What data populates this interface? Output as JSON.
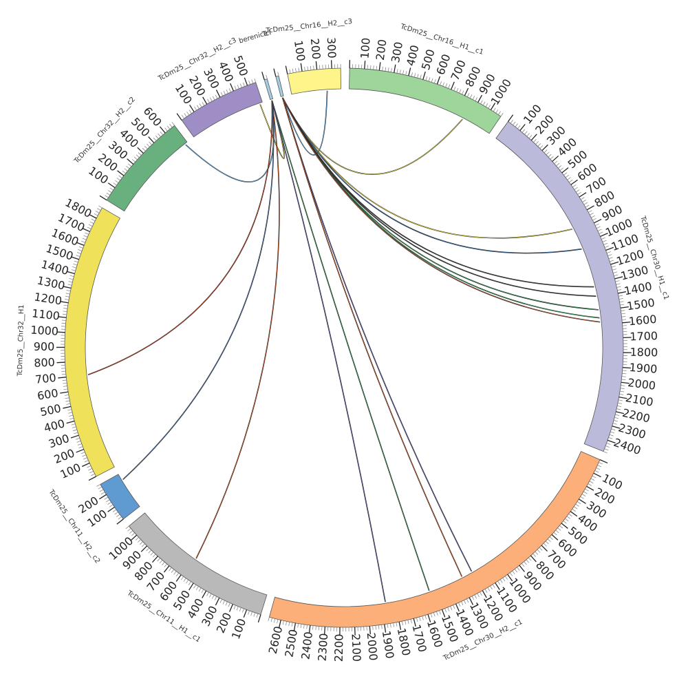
{
  "chromosomes": [
    {
      "id": "TcDm25__Chr32__H2__c3",
      "label": "TcDm25__Chr32__H2__c3",
      "length": 560,
      "color": "#9e8ec5",
      "ticks": [
        100,
        200,
        300,
        400,
        500
      ]
    },
    {
      "id": "berenice",
      "label": "berenice",
      "length": 20,
      "color": "#a6cee3",
      "ticks": []
    },
    {
      "id": "TcI",
      "label": "TcI",
      "length": 20,
      "color": "#a6cee3",
      "ticks": []
    },
    {
      "id": "TcDm25__Chr16__H2__c3",
      "label": "TcDm25__Chr16__H2__c3",
      "length": 360,
      "color": "#fdf58a",
      "ticks": [
        100,
        200,
        300
      ]
    },
    {
      "id": "TcDm25__Chr16__H1__c1",
      "label": "TcDm25__Chr16__H1__c1",
      "length": 1080,
      "color": "#9ed59b",
      "ticks": [
        100,
        200,
        300,
        400,
        500,
        600,
        700,
        800,
        900,
        1000
      ]
    },
    {
      "id": "TcDm25__Chr30__H1__c1",
      "label": "TcDm25__Chr30__H1__c1",
      "length": 2480,
      "color": "#bcbadb",
      "ticks": [
        100,
        200,
        300,
        400,
        500,
        600,
        700,
        800,
        900,
        1000,
        1100,
        1200,
        1300,
        1400,
        1500,
        1600,
        1700,
        1800,
        1900,
        2000,
        2100,
        2200,
        2300,
        2400
      ]
    },
    {
      "id": "TcDm25__Chr30__H2__c1",
      "label": "TcDm25__Chr30__H2__c1",
      "length": 2680,
      "color": "#fdaf79",
      "ticks": [
        100,
        200,
        300,
        400,
        500,
        600,
        700,
        800,
        900,
        1000,
        1100,
        1200,
        1300,
        1400,
        1500,
        1600,
        1700,
        1800,
        1900,
        2000,
        2100,
        2200,
        2300,
        2400,
        2500,
        2600
      ]
    },
    {
      "id": "TcDm25__Chr11__H1__c1",
      "label": "TcDm25__Chr11__H1__c1",
      "length": 1080,
      "color": "#b9b9b9",
      "ticks": [
        100,
        200,
        300,
        400,
        500,
        600,
        700,
        800,
        900,
        1000
      ]
    },
    {
      "id": "TcDm25__Chr11__H2__c2",
      "label": "TcDm25__Chr11__H2__c2",
      "length": 280,
      "color": "#5f9bd1",
      "ticks": [
        100,
        200
      ]
    },
    {
      "id": "TcDm25__Chr32__H1",
      "label": "TcDm25__Chr32__H1",
      "length": 1880,
      "color": "#efe25a",
      "ticks": [
        100,
        200,
        300,
        400,
        500,
        600,
        700,
        800,
        900,
        1000,
        1100,
        1200,
        1300,
        1400,
        1500,
        1600,
        1700,
        1800
      ]
    },
    {
      "id": "TcDm25__Chr32__H2__c2",
      "label": "TcDm25__Chr32__H2__c2",
      "length": 680,
      "color": "#69b07f",
      "ticks": [
        100,
        200,
        300,
        400,
        500,
        600
      ]
    }
  ],
  "links": [
    {
      "from": "berenice",
      "from_pos": 10,
      "to": "TcDm25__Chr32__H2__c3",
      "to_pos": 540,
      "color": "#e8d44a"
    },
    {
      "from": "berenice",
      "from_pos": 10,
      "to": "TcDm25__Chr32__H2__c2",
      "to_pos": 660,
      "color": "#5aa0d8"
    },
    {
      "from": "TcI",
      "from_pos": 10,
      "to": "TcDm25__Chr16__H2__c3",
      "to_pos": 260,
      "color": "#5aa0d8"
    },
    {
      "from": "TcI",
      "from_pos": 10,
      "to": "TcDm25__Chr16__H1__c1",
      "to_pos": 860,
      "color": "#c8c24a"
    },
    {
      "from": "TcI",
      "from_pos": 10,
      "to": "TcDm25__Chr30__H1__c1",
      "to_pos": 870,
      "color": "#d4c23a"
    },
    {
      "from": "TcI",
      "from_pos": 10,
      "to": "TcDm25__Chr30__H1__c1",
      "to_pos": 1030,
      "color": "#3a6ea8"
    },
    {
      "from": "TcI",
      "from_pos": 10,
      "to": "TcDm25__Chr30__H1__c1",
      "to_pos": 1320,
      "color": "#444444"
    },
    {
      "from": "TcI",
      "from_pos": 10,
      "to": "TcDm25__Chr30__H1__c1",
      "to_pos": 1390,
      "color": "#444444"
    },
    {
      "from": "TcI",
      "from_pos": 10,
      "to": "TcDm25__Chr30__H1__c1",
      "to_pos": 1490,
      "color": "#3a9a5a"
    },
    {
      "from": "TcI",
      "from_pos": 10,
      "to": "TcDm25__Chr30__H1__c1",
      "to_pos": 1550,
      "color": "#3a9a5a"
    },
    {
      "from": "TcI",
      "from_pos": 10,
      "to": "TcDm25__Chr30__H1__c1",
      "to_pos": 1580,
      "color": "#b05a3a"
    },
    {
      "from": "TcI",
      "from_pos": 10,
      "to": "TcDm25__Chr30__H2__c1",
      "to_pos": 1200,
      "color": "#5a5a9a"
    },
    {
      "from": "TcI",
      "from_pos": 10,
      "to": "TcDm25__Chr30__H2__c1",
      "to_pos": 1280,
      "color": "#c0562a"
    },
    {
      "from": "berenice",
      "from_pos": 10,
      "to": "TcDm25__Chr30__H2__c1",
      "to_pos": 1540,
      "color": "#3a8a4a"
    },
    {
      "from": "berenice",
      "from_pos": 10,
      "to": "TcDm25__Chr30__H2__c1",
      "to_pos": 1870,
      "color": "#5a5a9a"
    },
    {
      "from": "berenice",
      "from_pos": 10,
      "to": "TcDm25__Chr11__H1__c1",
      "to_pos": 580,
      "color": "#c0562a"
    },
    {
      "from": "berenice",
      "from_pos": 10,
      "to": "TcDm25__Chr11__H2__c2",
      "to_pos": 230,
      "color": "#4a6a9a"
    },
    {
      "from": "berenice",
      "from_pos": 10,
      "to": "TcDm25__Chr32__H1",
      "to_pos": 700,
      "color": "#c0452a"
    }
  ]
}
